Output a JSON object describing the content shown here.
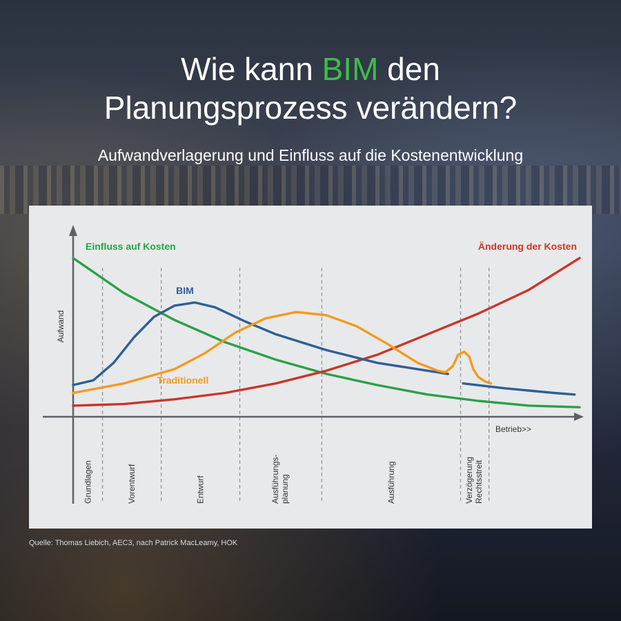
{
  "header": {
    "title_line1_prefix": "Wie kann ",
    "title_accent": "BIM",
    "title_line1_suffix": " den",
    "title_line2": "Planungsprozess verändern?",
    "subtitle": "Aufwandverlagerung und Einfluss auf  die Kostenentwicklung"
  },
  "source": "Quelle: Thomas Liebich, AEC3, nach Patrick MacLeamy, HOK",
  "colors": {
    "bim": "#2e5f95",
    "traditional": "#f39a1e",
    "influence": "#2aa048",
    "change": "#c8362a",
    "accent": "#3dbd4c",
    "axis": "#5e6065"
  },
  "chart_data": {
    "type": "line",
    "ylabel": "Aufwand",
    "xlabel": "Betrieb>>",
    "grid": false,
    "phases": [
      {
        "name": "Grundlagen",
        "start": 0,
        "end": 0.058
      },
      {
        "name": "Vorentwurf",
        "start": 0.058,
        "end": 0.174
      },
      {
        "name": "Entwurf",
        "start": 0.174,
        "end": 0.329
      },
      {
        "name": "Ausführungs-\nplanung",
        "start": 0.329,
        "end": 0.491
      },
      {
        "name": "Ausführung",
        "start": 0.491,
        "end": 0.765
      },
      {
        "name": "Verzögerung\nRechtsstreit",
        "start": 0.765,
        "end": 0.821
      },
      {
        "name": "",
        "start": 0.821,
        "end": 1.0
      }
    ],
    "series": [
      {
        "name": "Einfluss auf Kosten",
        "key": "influence",
        "points": [
          [
            0,
            1.0
          ],
          [
            0.1,
            0.78
          ],
          [
            0.2,
            0.61
          ],
          [
            0.3,
            0.47
          ],
          [
            0.4,
            0.36
          ],
          [
            0.5,
            0.27
          ],
          [
            0.6,
            0.2
          ],
          [
            0.7,
            0.14
          ],
          [
            0.8,
            0.1
          ],
          [
            0.9,
            0.07
          ],
          [
            1.0,
            0.06
          ]
        ]
      },
      {
        "name": "Änderung der Kosten",
        "key": "change",
        "points": [
          [
            0,
            0.07
          ],
          [
            0.1,
            0.08
          ],
          [
            0.2,
            0.11
          ],
          [
            0.3,
            0.15
          ],
          [
            0.4,
            0.21
          ],
          [
            0.5,
            0.29
          ],
          [
            0.6,
            0.39
          ],
          [
            0.7,
            0.52
          ],
          [
            0.8,
            0.65
          ],
          [
            0.9,
            0.8
          ],
          [
            1.0,
            1.0
          ]
        ]
      },
      {
        "name": "BIM",
        "key": "bim",
        "points": [
          [
            0,
            0.2
          ],
          [
            0.04,
            0.23
          ],
          [
            0.08,
            0.34
          ],
          [
            0.12,
            0.5
          ],
          [
            0.16,
            0.63
          ],
          [
            0.2,
            0.7
          ],
          [
            0.24,
            0.72
          ],
          [
            0.28,
            0.69
          ],
          [
            0.34,
            0.6
          ],
          [
            0.4,
            0.52
          ],
          [
            0.5,
            0.42
          ],
          [
            0.6,
            0.34
          ],
          [
            0.7,
            0.29
          ],
          [
            0.74,
            0.27
          ],
          null,
          [
            0.77,
            0.21
          ],
          [
            0.85,
            0.18
          ],
          [
            0.95,
            0.15
          ],
          [
            0.99,
            0.14
          ]
        ]
      },
      {
        "name": "Traditionell",
        "key": "traditional",
        "points": [
          [
            0,
            0.15
          ],
          [
            0.1,
            0.21
          ],
          [
            0.2,
            0.3
          ],
          [
            0.26,
            0.4
          ],
          [
            0.32,
            0.53
          ],
          [
            0.38,
            0.62
          ],
          [
            0.44,
            0.66
          ],
          [
            0.5,
            0.64
          ],
          [
            0.56,
            0.57
          ],
          [
            0.62,
            0.46
          ],
          [
            0.68,
            0.34
          ],
          [
            0.72,
            0.29
          ],
          [
            0.735,
            0.28
          ],
          [
            0.75,
            0.32
          ],
          [
            0.76,
            0.39
          ],
          [
            0.772,
            0.41
          ],
          [
            0.782,
            0.38
          ],
          [
            0.79,
            0.3
          ],
          [
            0.8,
            0.25
          ],
          [
            0.815,
            0.22
          ],
          [
            0.825,
            0.21
          ]
        ]
      }
    ]
  }
}
